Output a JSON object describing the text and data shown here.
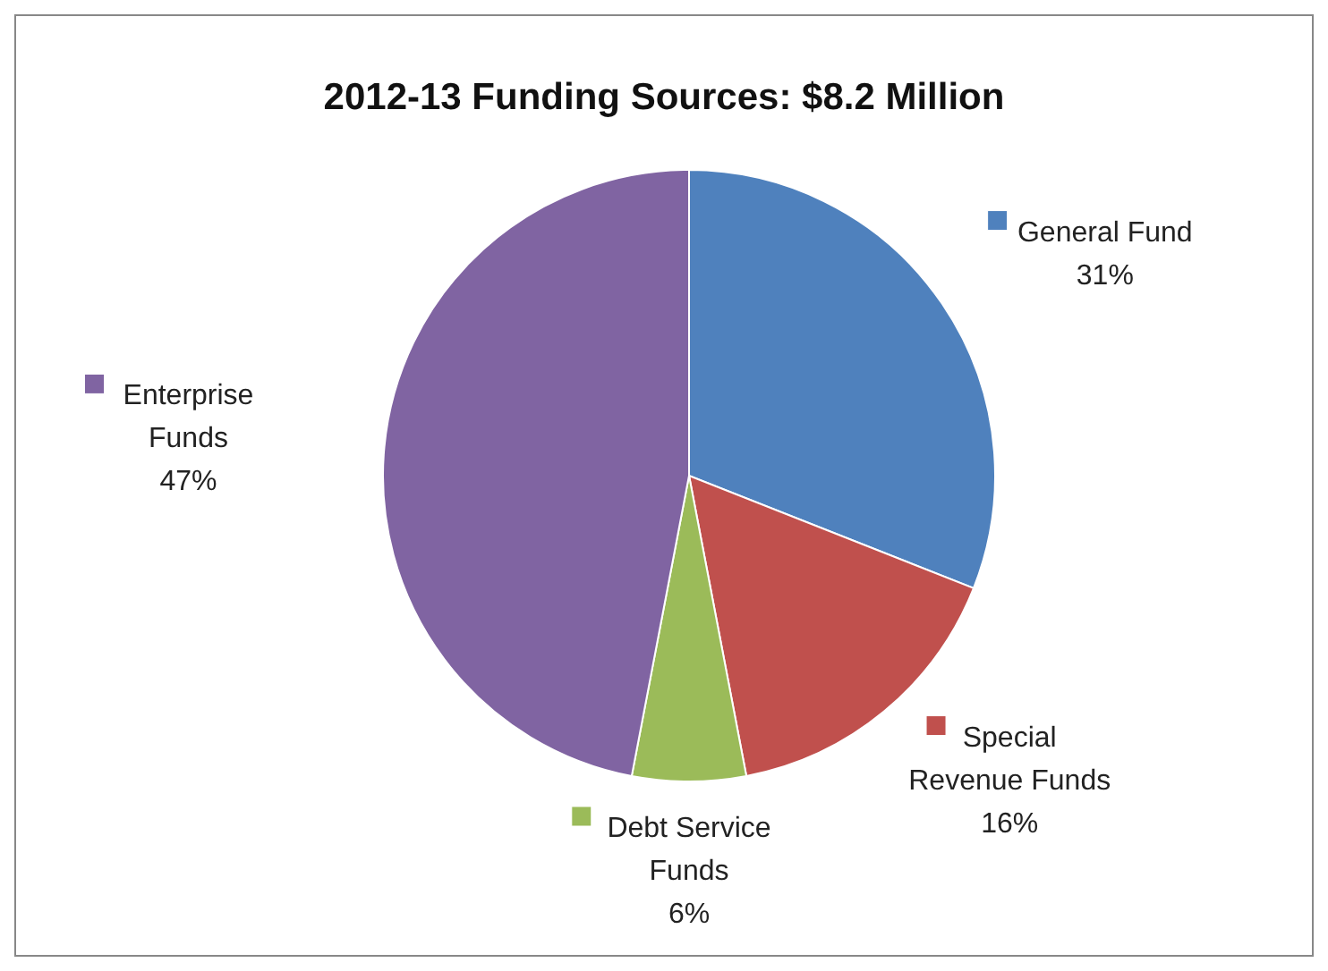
{
  "chart_data": {
    "type": "pie",
    "title": "2012-13 Funding Sources: $8.2 Million",
    "categories": [
      "General Fund",
      "Special Revenue Funds",
      "Debt Service Funds",
      "Enterprise Funds"
    ],
    "values": [
      31,
      16,
      6,
      47
    ],
    "colors": [
      "#4f81bd",
      "#c0504d",
      "#9bbb59",
      "#8064a2"
    ],
    "value_labels": [
      "31%",
      "16%",
      "6%",
      "47%"
    ],
    "legend": "bottom left"
  }
}
